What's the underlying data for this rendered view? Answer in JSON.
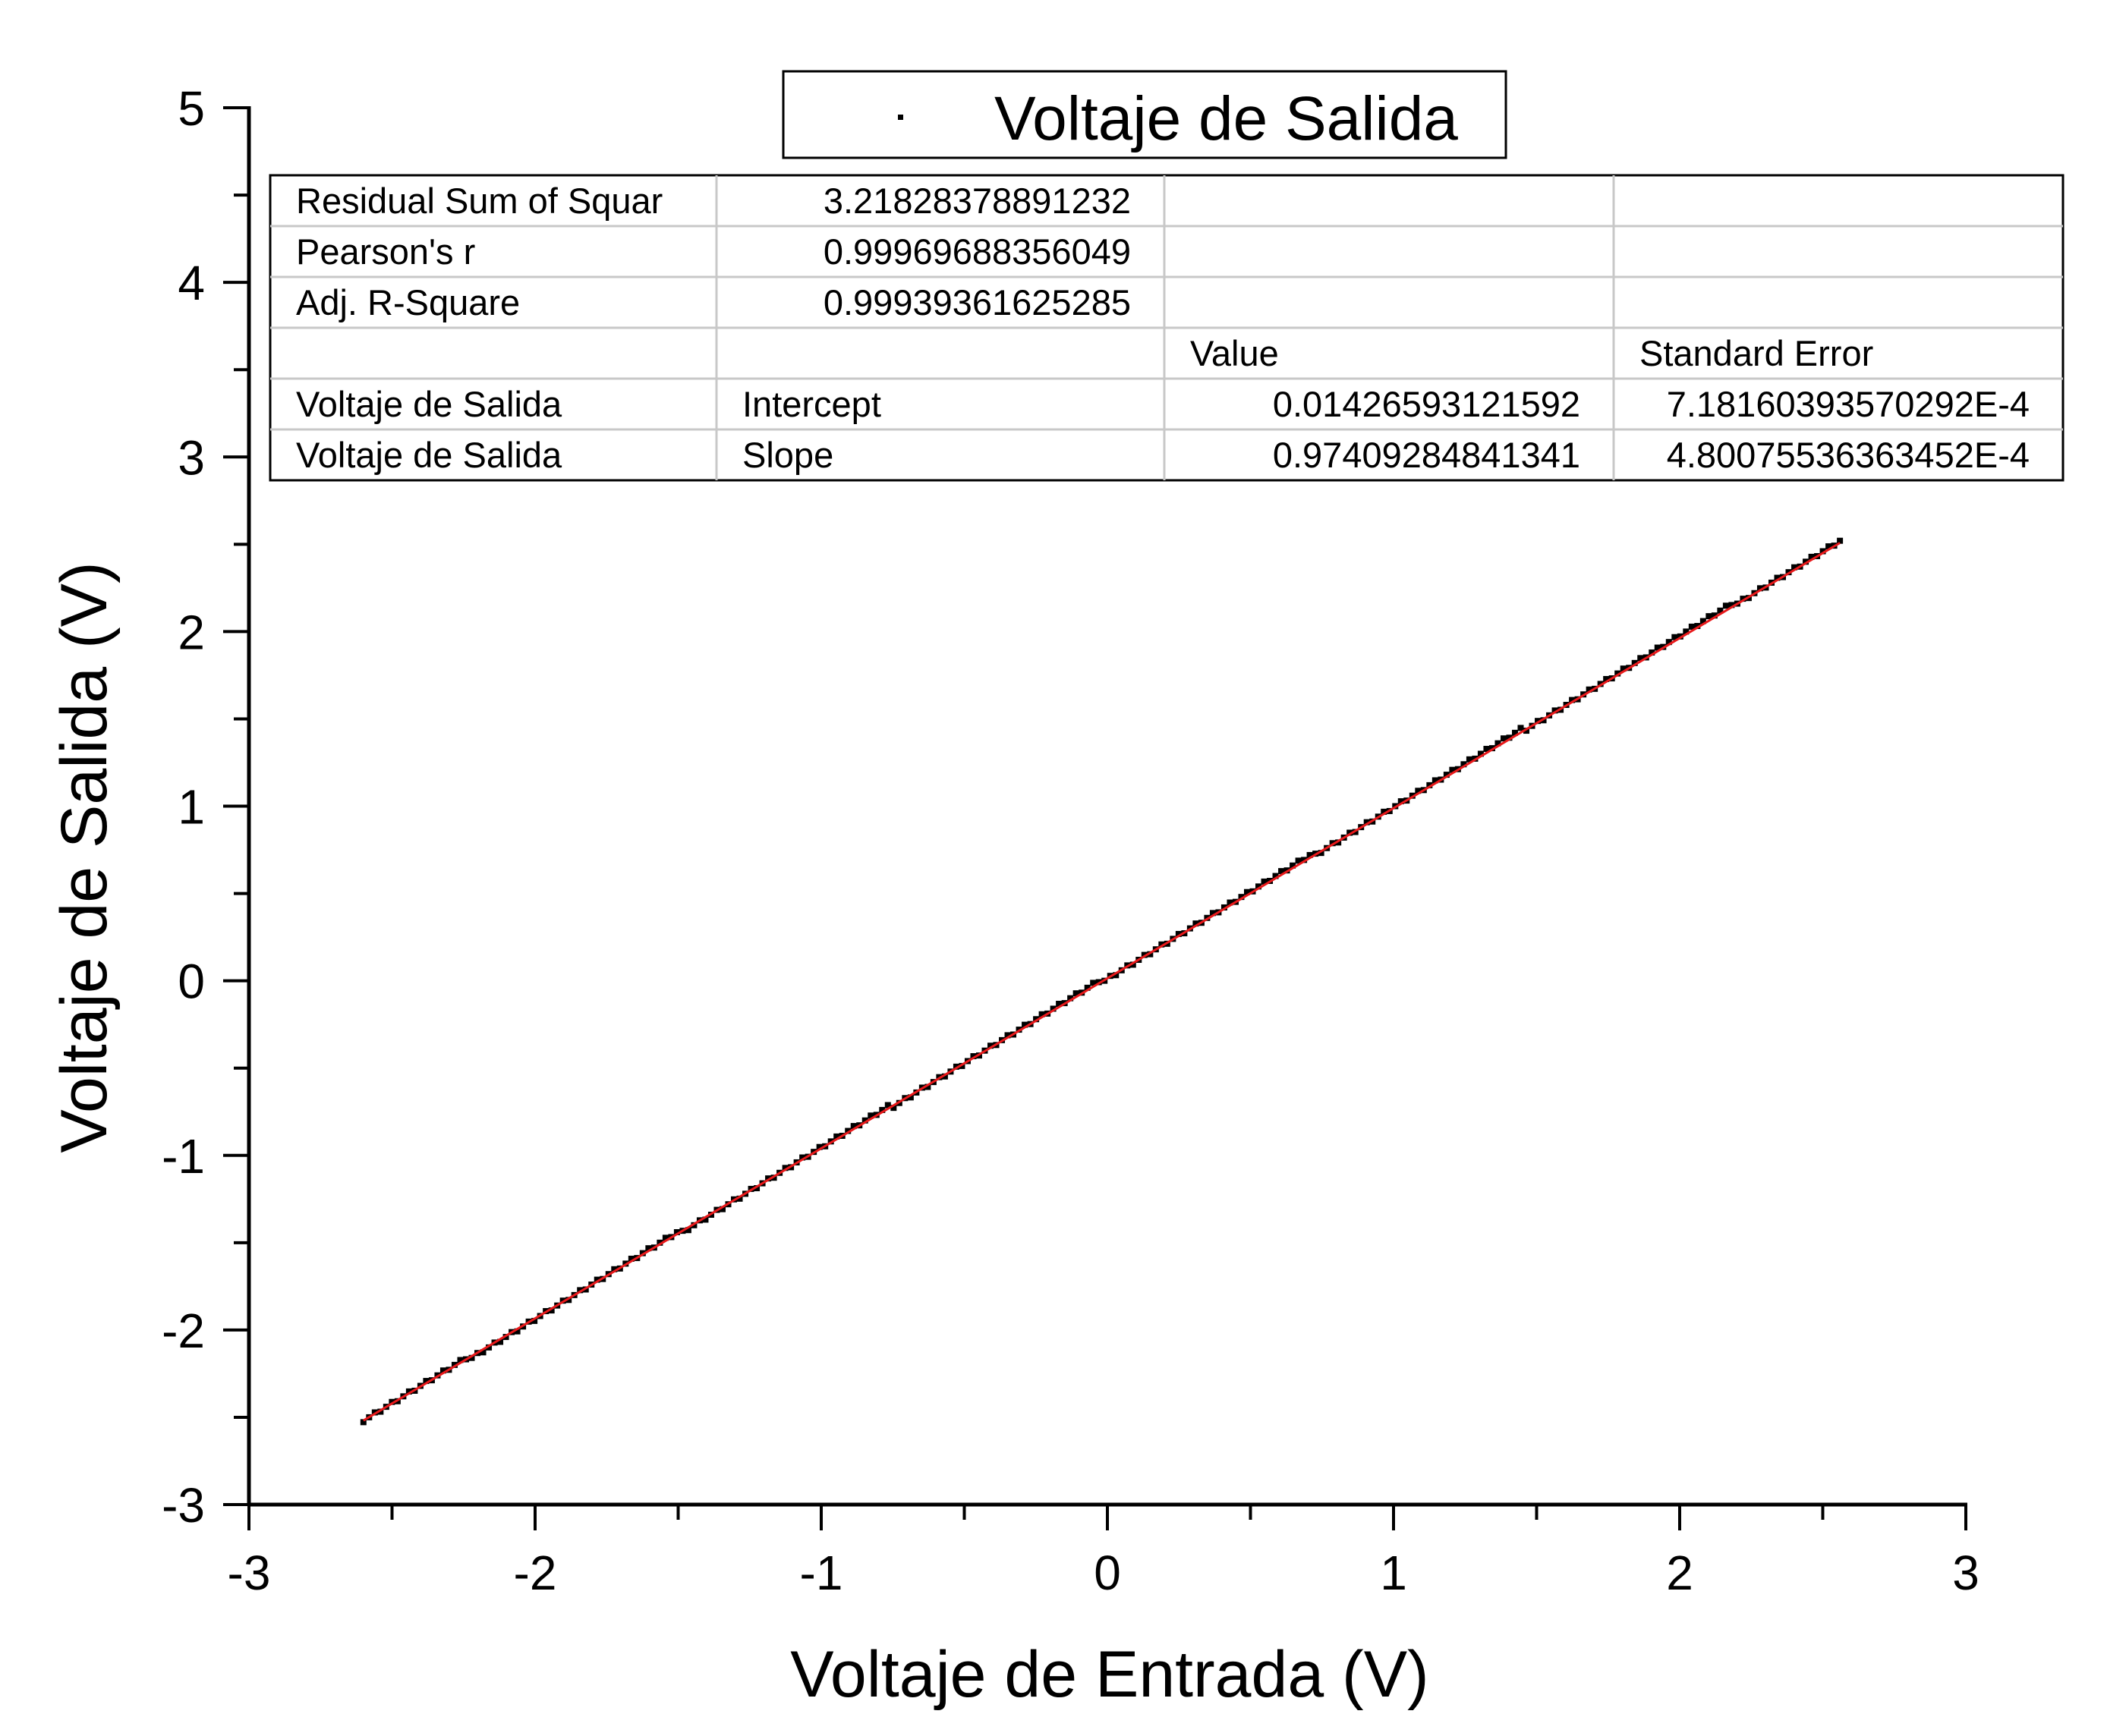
{
  "chart_data": {
    "type": "scatter",
    "title": "",
    "xlabel": "Voltaje de Entrada (V)",
    "ylabel": "Voltaje de Salida (V)",
    "xlim": [
      -3,
      3
    ],
    "ylim": [
      -3,
      5
    ],
    "x_ticks": [
      "-3",
      "-2",
      "-1",
      "0",
      "1",
      "2",
      "3"
    ],
    "y_ticks": [
      "-3",
      "-2",
      "-1",
      "0",
      "1",
      "2",
      "3",
      "4",
      "5"
    ],
    "grid": false,
    "legend": {
      "placement": "top-center",
      "entries": [
        "Voltaje de Salida"
      ]
    },
    "series": [
      {
        "name": "Voltaje de Salida",
        "marker": "square",
        "color": "#000000",
        "x_range": [
          -2.6,
          2.56
        ],
        "y_range": [
          -2.52,
          2.52
        ],
        "approx_points": 260
      }
    ],
    "fit_line": {
      "color": "#e8191b",
      "intercept": 0.01426593121592,
      "slope": 0.97409284841341,
      "x_range": [
        -2.6,
        2.56
      ]
    },
    "stats_table": [
      [
        "Residual Sum of Squar",
        "3.21828378891232",
        "",
        ""
      ],
      [
        "Pearson's r",
        "0.99969688356049",
        "",
        ""
      ],
      [
        "Adj. R-Square",
        "0.99939361625285",
        "",
        ""
      ],
      [
        "",
        "",
        "Value",
        "Standard Error"
      ],
      [
        "Voltaje de Salida",
        "Intercept",
        "0.01426593121592",
        "7.18160393570292E-4"
      ],
      [
        "Voltaje de Salida",
        "Slope",
        "0.97409284841341",
        "4.80075536363452E-4"
      ]
    ]
  }
}
